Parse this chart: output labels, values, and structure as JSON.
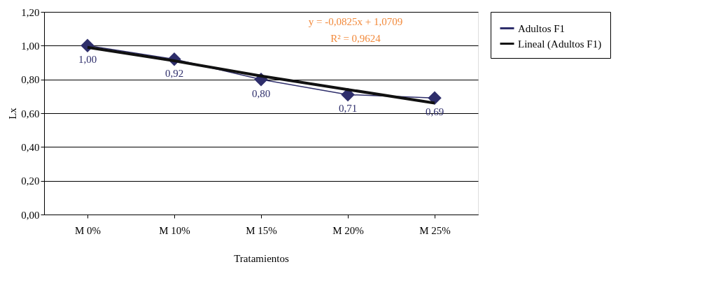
{
  "chart_data": {
    "type": "line",
    "xlabel": "Tratamientos",
    "ylabel": "Lx",
    "categories": [
      "M 0%",
      "M 10%",
      "M 15%",
      "M 20%",
      "M 25%"
    ],
    "series": [
      {
        "name": "Adultos F1",
        "color": "#2e2e6b",
        "values": [
          1.0,
          0.92,
          0.8,
          0.71,
          0.69
        ],
        "marker": "diamond",
        "line_style": "solid",
        "value_labels": [
          "1,00",
          "0,92",
          "0,80",
          "0,71",
          "0,69"
        ]
      },
      {
        "name": "Lineal (Adultos F1)",
        "type": "line",
        "color": "#111111",
        "values": [
          0.99,
          0.91,
          0.82,
          0.74,
          0.66
        ],
        "marker": "none",
        "line_style": "solid"
      }
    ],
    "ylim": [
      0,
      1.2
    ],
    "yticks": [
      {
        "value": 0,
        "label": "0,00"
      },
      {
        "value": 0.2,
        "label": "0,20"
      },
      {
        "value": 0.4,
        "label": "0,40"
      },
      {
        "value": 0.6,
        "label": "0,60"
      },
      {
        "value": 0.8,
        "label": "0,80"
      },
      {
        "value": 1.0,
        "label": "1,00"
      },
      {
        "value": 1.2,
        "label": "1,20"
      }
    ],
    "grid": "y",
    "legend": "right",
    "annotations": [
      "y = -0,0825x + 1,0709",
      "R² = 0,9624"
    ]
  }
}
